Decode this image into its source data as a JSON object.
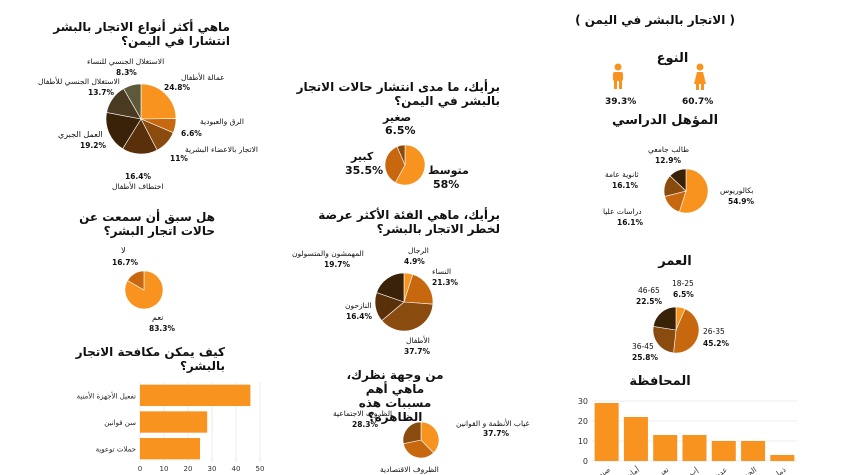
{
  "page": {
    "title": "( الاتجار بالبشر في اليمن )"
  },
  "gender": {
    "title": "النوع",
    "male": {
      "value": 39.3,
      "label": "39.3%",
      "color": "#f7931e"
    },
    "female": {
      "value": 60.7,
      "label": "60.7%",
      "color": "#f7931e"
    }
  },
  "colors": {
    "orange": "#f7931e",
    "dark_orange": "#c8680e",
    "brown": "#8a4b0f",
    "dark": "#3a2208",
    "olive": "#5c5a3a"
  },
  "chart_data": [
    {
      "id": "education",
      "type": "pie",
      "title": "المؤهل الدراسي",
      "series": [
        {
          "values": [
            54.9,
            16.1,
            16.1,
            12.9
          ]
        }
      ],
      "categories": [
        "بكالوريوس",
        "دراسات عليا",
        "ثانوية عامة",
        "طالب جامعي"
      ],
      "labels": [
        "54.9%",
        "16.1%",
        "16.1%",
        "12.9%"
      ]
    },
    {
      "id": "age",
      "type": "pie",
      "title": "العمر",
      "series": [
        {
          "values": [
            6.5,
            45.2,
            25.8,
            22.5
          ]
        }
      ],
      "categories": [
        "18-25",
        "26-35",
        "36-45",
        "46-65"
      ],
      "labels": [
        "6.5%",
        "45.2%",
        "25.8%",
        "22.5%"
      ]
    },
    {
      "id": "governorate",
      "type": "bar",
      "title": "المحافظة",
      "categories": [
        "صنعاء",
        "أمانة",
        "تعز",
        "إب",
        "عدن",
        "الحديدة",
        "ذمار"
      ],
      "tick_labels": [
        "صنع",
        "أمان",
        "تعز",
        "إب",
        "عدن",
        "الحد",
        "ذما"
      ],
      "values": [
        29,
        22,
        13,
        13,
        10,
        10,
        3
      ],
      "ylim": [
        0,
        30
      ],
      "yticks": [
        0,
        10,
        20,
        30
      ]
    },
    {
      "id": "types",
      "type": "pie",
      "title": "ماهي أكثر أنواع الاتجار بالبشر انتشارا في اليمن؟",
      "series": [
        {
          "values": [
            24.8,
            6.6,
            11,
            16.4,
            19.2,
            13.7,
            8.3
          ]
        }
      ],
      "categories": [
        "عمالة الأطفال",
        "الرق والعبودية",
        "الاتجار بالاعضاء البشرية",
        "اختطاف الأطفال",
        "العمل الجبري",
        "الاستغلال الجنسي للأطفال",
        "الاستغلال الجنسي للنساء"
      ],
      "labels": [
        "24.8%",
        "6.6%",
        "11%",
        "16.4%",
        "19.2%",
        "13.7%",
        "8.3%"
      ]
    },
    {
      "id": "prevalence",
      "type": "pie",
      "title": "برأيك، ما مدى انتشار حالات الاتجار بالبشر في اليمن؟",
      "series": [
        {
          "values": [
            58,
            35.5,
            6.5
          ]
        }
      ],
      "categories": [
        "متوسط",
        "كبير",
        "صغير"
      ],
      "labels": [
        "58%",
        "35.5%",
        "6.5%"
      ]
    },
    {
      "id": "heard",
      "type": "pie",
      "title": "هل سبق أن سمعت عن حالات اتجار البشر؟",
      "series": [
        {
          "values": [
            83.3,
            16.7
          ]
        }
      ],
      "categories": [
        "نعم",
        "لا"
      ],
      "labels": [
        "83.3%",
        "16.7%"
      ]
    },
    {
      "id": "risk_groups",
      "type": "pie",
      "title": "برأيك، ماهي الفئة الأكثر عرضة لخطر الاتجار بالبشر؟",
      "series": [
        {
          "values": [
            4.9,
            21.3,
            37.7,
            16.4,
            19.7
          ]
        }
      ],
      "categories": [
        "الرجال",
        "النساء",
        "الأطفال",
        "النازحون",
        "المهمشون والمتسولون"
      ],
      "labels": [
        "4.9%",
        "21.3%",
        "37.7%",
        "16.4%",
        "19.7%"
      ]
    },
    {
      "id": "causes",
      "type": "pie",
      "title": "من وجهة نظرك، ماهي أهم مسببات هذه الظاهرة؟",
      "series": [
        {
          "values": [
            37.7,
            34,
            28.3
          ]
        }
      ],
      "categories": [
        "غياب الأنظمة و القوانين",
        "الظروف الاقتصادية",
        "الظروف الاجتماعية"
      ],
      "labels": [
        "37.7%",
        "",
        "28.3%"
      ]
    },
    {
      "id": "combat",
      "type": "bar",
      "orientation": "horizontal",
      "title": "كيف يمكن مكافحة الاتجار بالبشر؟",
      "categories": [
        "تفعيل الأجهزة الأمنية",
        "سن قوانين",
        "حملات توعوية"
      ],
      "values": [
        46,
        28,
        25
      ],
      "xlim": [
        0,
        50
      ],
      "xticks": [
        0,
        10,
        20,
        30,
        40,
        50
      ]
    }
  ]
}
